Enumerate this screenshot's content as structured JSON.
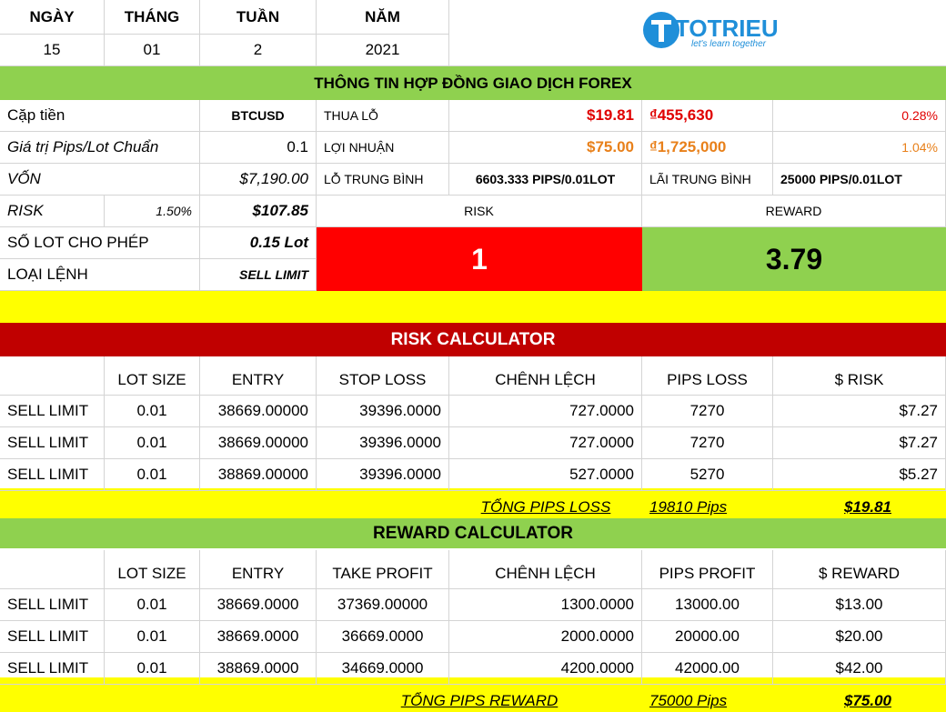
{
  "date": {
    "headers": [
      "NGÀY",
      "THÁNG",
      "TUẦN",
      "NĂM"
    ],
    "values": [
      "15",
      "01",
      "2",
      "2021"
    ]
  },
  "logo": {
    "name": "TOTRIEU",
    "tagline": "let's learn together"
  },
  "contract": {
    "title": "THÔNG TIN HỢP ĐỒNG GIAO DỊCH FOREX",
    "pair_label": "Cặp tiền",
    "pair": "BTCUSD",
    "pip_value_label": "Giá trị Pips/Lot Chuẩn",
    "pip_value": "0.1",
    "capital_label": "VỐN",
    "capital": "$7,190.00",
    "risk_label": "RISK",
    "risk_pct": "1.50%",
    "risk_amount": "$107.85",
    "lot_label": "SỐ LOT CHO PHÉP",
    "lot": "0.15 Lot",
    "order_label": "LOẠI LỆNH",
    "order": "SELL LIMIT",
    "loss_label": "THUA LỖ",
    "loss_usd": "$19.81",
    "loss_vnd": "₫455,630",
    "loss_pct": "0.28%",
    "profit_label": "LỢI NHUẬN",
    "profit_usd": "$75.00",
    "profit_vnd": "₫1,725,000",
    "profit_pct": "1.04%",
    "avg_loss_label": "LỖ TRUNG BÌNH",
    "avg_loss": "6603.333 PIPS/0.01LOT",
    "avg_profit_label": "LÃI TRUNG BÌNH",
    "avg_profit": "25000 PIPS/0.01LOT",
    "ratio_risk_label": "RISK",
    "ratio_risk": "1",
    "ratio_reward_label": "REWARD",
    "ratio_reward": "3.79"
  },
  "risk_calculator": {
    "title": "RISK CALCULATOR",
    "columns": [
      "LOT SIZE",
      "ENTRY",
      "STOP LOSS",
      "CHÊNH LỆCH",
      "PIPS LOSS",
      "$ RISK"
    ],
    "rows": [
      [
        "SELL LIMIT",
        "0.01",
        "38669.00000",
        "39396.0000",
        "727.0000",
        "7270",
        "$7.27"
      ],
      [
        "SELL LIMIT",
        "0.01",
        "38669.00000",
        "39396.0000",
        "727.0000",
        "7270",
        "$7.27"
      ],
      [
        "SELL LIMIT",
        "0.01",
        "38869.00000",
        "39396.0000",
        "527.0000",
        "5270",
        "$5.27"
      ]
    ],
    "total_label": "TỔNG PIPS LOSS",
    "total_pips": "19810 Pips",
    "total_usd": "$19.81"
  },
  "reward_calculator": {
    "title": "REWARD CALCULATOR",
    "columns": [
      "LOT SIZE",
      "ENTRY",
      "TAKE PROFIT",
      "CHÊNH LỆCH",
      "PIPS PROFIT",
      "$ REWARD"
    ],
    "rows": [
      [
        "SELL LIMIT",
        "0.01",
        "38669.0000",
        "37369.00000",
        "1300.0000",
        "13000.00",
        "$13.00"
      ],
      [
        "SELL LIMIT",
        "0.01",
        "38669.0000",
        "36669.0000",
        "2000.0000",
        "20000.00",
        "$20.00"
      ],
      [
        "SELL LIMIT",
        "0.01",
        "38869.0000",
        "34669.0000",
        "4200.0000",
        "42000.00",
        "$42.00"
      ]
    ],
    "total_label": "TỔNG PIPS REWARD",
    "total_pips": "75000 Pips",
    "total_usd": "$75.00"
  }
}
